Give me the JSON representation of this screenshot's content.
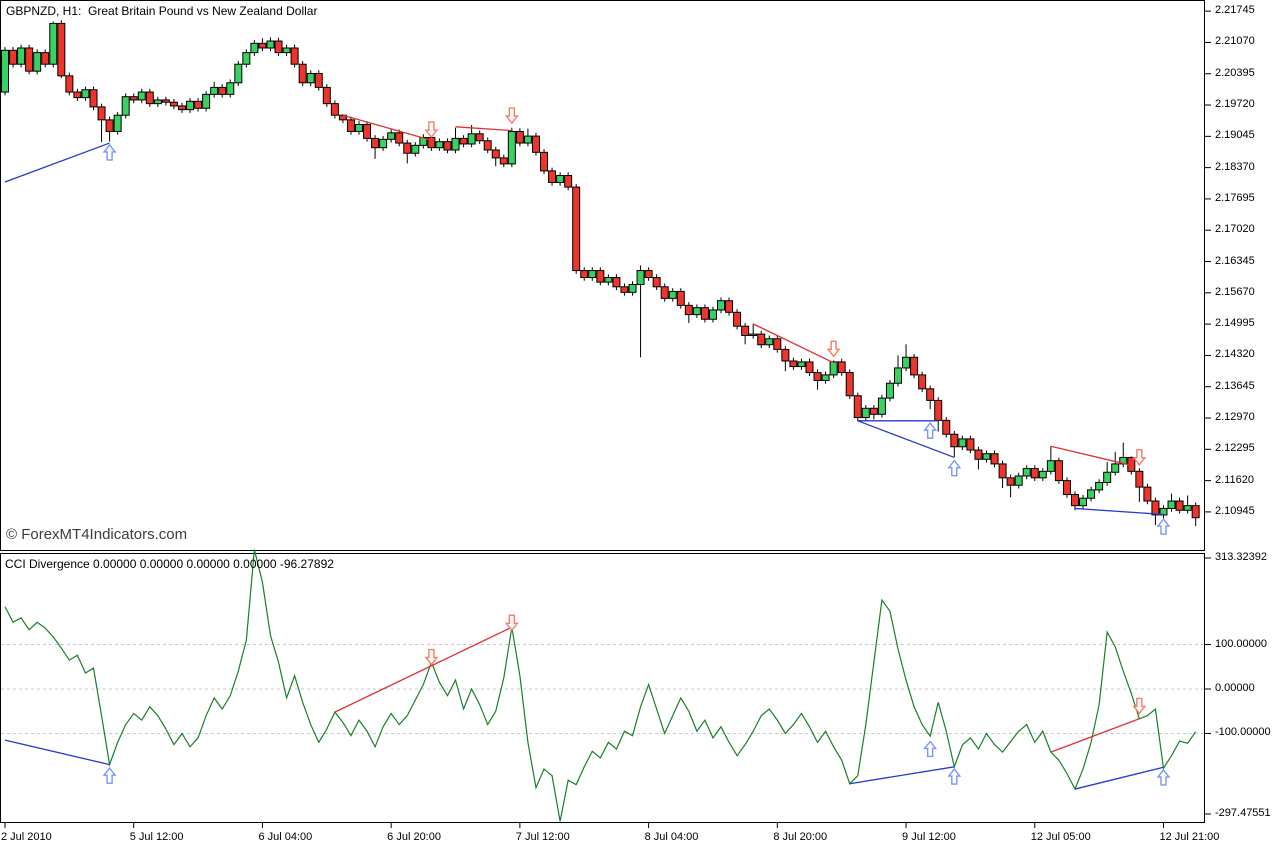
{
  "window": {
    "title": "GBPNZD, H1:  Great Britain Pound vs New Zealand Dollar",
    "watermark": "© ForexMT4Indicators.com"
  },
  "indicator": {
    "label": "CCI Divergence 0.00000 0.00000 0.00000 0.00000 -96.27892"
  },
  "colors": {
    "bull_candle": "#3ad163",
    "bear_candle": "#ee352b",
    "candle_outline": "#000000",
    "cci_line": "#1a7f2a",
    "blue_line": "#2638cf",
    "red_line": "#e03131",
    "blue_arrow": "#7a96f8",
    "red_arrow": "#fb7a66",
    "grid": "#c9c9c9",
    "axis_text": "#000000"
  },
  "chart_data": [
    {
      "type": "candlestick",
      "symbol": "GBPNZD",
      "timeframe": "H1",
      "title": "GBPNZD, H1:  Great Britain Pound vs New Zealand Dollar",
      "ylim": [
        2.1024,
        2.2199
      ],
      "grid": "off",
      "y_ticks": [
        2.21745,
        2.2107,
        2.20395,
        2.1972,
        2.19045,
        2.1837,
        2.17695,
        2.1702,
        2.16345,
        2.1567,
        2.14995,
        2.1432,
        2.13645,
        2.1297,
        2.12295,
        2.1162,
        2.10945
      ],
      "x_labels": [
        {
          "text": "2 Jul 2010",
          "bar": 0
        },
        {
          "text": "5 Jul 12:00",
          "bar": 16
        },
        {
          "text": "6 Jul 04:00",
          "bar": 32
        },
        {
          "text": "6 Jul 20:00",
          "bar": 48
        },
        {
          "text": "7 Jul 12:00",
          "bar": 64
        },
        {
          "text": "8 Jul 04:00",
          "bar": 80
        },
        {
          "text": "8 Jul 20:00",
          "bar": 96
        },
        {
          "text": "9 Jul 12:00",
          "bar": 112
        },
        {
          "text": "12 Jul 05:00",
          "bar": 128
        },
        {
          "text": "12 Jul 21:00",
          "bar": 144
        }
      ],
      "open0": 2.2,
      "default_wick": 0.0007,
      "closes": [
        2.209,
        2.206,
        2.2095,
        2.2045,
        2.2085,
        2.206,
        2.2148,
        2.2035,
        2.2,
        2.1988,
        2.2005,
        2.1968,
        2.194,
        2.1915,
        2.195,
        2.199,
        2.1983,
        2.2,
        2.1975,
        2.1983,
        2.1978,
        2.197,
        2.1962,
        2.198,
        2.1965,
        2.1995,
        2.201,
        2.1995,
        2.202,
        2.206,
        2.2085,
        2.2105,
        2.2095,
        2.211,
        2.2085,
        2.2095,
        2.206,
        2.202,
        2.204,
        2.201,
        2.1975,
        2.195,
        2.194,
        2.1915,
        2.193,
        2.19,
        2.188,
        2.1898,
        2.1912,
        2.189,
        2.1868,
        2.1885,
        2.1902,
        2.188,
        2.1893,
        2.1875,
        2.19,
        2.1888,
        2.191,
        2.1895,
        2.1875,
        2.1858,
        2.1845,
        2.1915,
        2.189,
        2.1905,
        2.187,
        2.183,
        2.1805,
        2.182,
        2.1795,
        2.1615,
        2.16,
        2.1615,
        2.159,
        2.16,
        2.158,
        2.1568,
        2.1585,
        2.1615,
        2.16,
        2.158,
        2.1555,
        2.157,
        2.154,
        2.152,
        2.1535,
        2.151,
        2.153,
        2.155,
        2.1525,
        2.1495,
        2.1475,
        2.1478,
        2.1455,
        2.1468,
        2.1445,
        2.142,
        2.1408,
        2.1418,
        2.1395,
        2.1378,
        2.139,
        2.1418,
        2.1395,
        2.1345,
        2.1298,
        2.1318,
        2.1305,
        2.134,
        2.1372,
        2.1405,
        2.1428,
        2.139,
        2.136,
        2.1335,
        2.1292,
        2.1262,
        2.1235,
        2.1252,
        2.1228,
        2.1208,
        2.122,
        2.1198,
        2.1168,
        2.1152,
        2.1172,
        2.1188,
        2.1168,
        2.1182,
        2.1205,
        2.1162,
        2.1132,
        2.1108,
        2.1124,
        2.1142,
        2.1158,
        2.118,
        2.1198,
        2.1212,
        2.1182,
        2.1148,
        2.1118,
        2.1088,
        2.1102,
        2.1118,
        2.1098,
        2.1108,
        2.1082
      ],
      "wick_overrides": {
        "6": {
          "h": 2.2152
        },
        "7": {
          "l": 2.203
        },
        "12": {
          "l": 2.1892
        },
        "13": {
          "l": 2.1893
        },
        "26": {
          "h": 2.2022
        },
        "31": {
          "h": 2.2112
        },
        "32": {
          "h": 2.2116
        },
        "33": {
          "h": 2.2118
        },
        "42": {
          "h": 2.1952
        },
        "46": {
          "l": 2.1856
        },
        "50": {
          "l": 2.1846
        },
        "53": {
          "h": 2.1896
        },
        "56": {
          "h": 2.1923
        },
        "58": {
          "h": 2.1929
        },
        "61": {
          "l": 2.184
        },
        "63": {
          "h": 2.1923
        },
        "65": {
          "h": 2.1921
        },
        "79": {
          "h": 2.1626,
          "l": 2.1428
        },
        "85": {
          "l": 2.1502
        },
        "92": {
          "l": 2.1456
        },
        "93": {
          "h": 2.15
        },
        "97": {
          "l": 2.1398
        },
        "101": {
          "l": 2.1358
        },
        "103": {
          "h": 2.1421
        },
        "106": {
          "l": 2.129
        },
        "108": {
          "l": 2.1294
        },
        "111": {
          "h": 2.1432
        },
        "112": {
          "h": 2.1456
        },
        "115": {
          "l": 2.1316
        },
        "116": {
          "l": 2.1268
        },
        "118": {
          "l": 2.1212
        },
        "121": {
          "l": 2.1186
        },
        "124": {
          "l": 2.1146
        },
        "125": {
          "l": 2.1126
        },
        "130": {
          "h": 2.1236
        },
        "133": {
          "l": 2.1098
        },
        "137": {
          "h": 2.1202
        },
        "138": {
          "h": 2.1224
        },
        "139": {
          "h": 2.1244
        },
        "140": {
          "h": 2.1214
        },
        "141": {
          "l": 2.1116
        },
        "143": {
          "l": 2.1066
        },
        "145": {
          "h": 2.1134
        },
        "147": {
          "h": 2.113
        },
        "148": {
          "l": 2.1064
        }
      },
      "objects": {
        "trendlines": [
          {
            "color": "blue",
            "from": [
              0,
              2.1806
            ],
            "to": [
              13,
              2.189
            ]
          },
          {
            "color": "blue",
            "from": [
              106,
              2.1291
            ],
            "to": [
              116,
              2.1291
            ]
          },
          {
            "color": "blue",
            "from": [
              106,
              2.1291
            ],
            "to": [
              118,
              2.1212
            ]
          },
          {
            "color": "blue",
            "from": [
              133,
              2.1102
            ],
            "to": [
              144,
              2.1089
            ]
          },
          {
            "color": "red",
            "from": [
              42,
              2.195
            ],
            "to": [
              53,
              2.1896
            ]
          },
          {
            "color": "red",
            "from": [
              56,
              2.1925
            ],
            "to": [
              63,
              2.1917
            ]
          },
          {
            "color": "red",
            "from": [
              93,
              2.15
            ],
            "to": [
              103,
              2.1416
            ]
          },
          {
            "color": "red",
            "from": [
              130,
              2.1236
            ],
            "to": [
              140,
              2.1195
            ]
          }
        ],
        "arrows": [
          {
            "dir": "up",
            "bar": 13,
            "price": 2.1886
          },
          {
            "dir": "up",
            "bar": 115,
            "price": 2.1286
          },
          {
            "dir": "up",
            "bar": 118,
            "price": 2.1205
          },
          {
            "dir": "up",
            "bar": 144,
            "price": 2.1079
          },
          {
            "dir": "down",
            "bar": 53,
            "price": 2.1903
          },
          {
            "dir": "down",
            "bar": 63,
            "price": 2.1933
          },
          {
            "dir": "down",
            "bar": 103,
            "price": 2.143
          },
          {
            "dir": "down",
            "bar": 141,
            "price": 2.1196
          }
        ]
      }
    },
    {
      "type": "line",
      "name": "CCI Divergence",
      "current_value": -96.27892,
      "ylim": [
        -297.47551,
        313.32392
      ],
      "grid_levels": [
        100,
        0,
        -100
      ],
      "y_ticks": [
        {
          "label": "313.32392",
          "value": 313.32392
        },
        {
          "label": "100.00000",
          "value": 100.0
        },
        {
          "label": "0.00000",
          "value": 0.0
        },
        {
          "label": "-100.00000",
          "value": -100.0
        },
        {
          "label": "-297.47551",
          "value": -297.47551
        }
      ],
      "values": [
        185,
        150,
        160,
        133,
        150,
        137,
        117,
        92,
        65,
        76,
        36,
        47,
        -60,
        -170,
        -120,
        -80,
        -55,
        -70,
        -40,
        -60,
        -90,
        -125,
        -100,
        -130,
        -110,
        -60,
        -20,
        -45,
        -15,
        40,
        110,
        313.32,
        240,
        120,
        60,
        -20,
        30,
        -30,
        -80,
        -120,
        -90,
        -52,
        -75,
        -105,
        -70,
        -95,
        -130,
        -85,
        -55,
        -80,
        -60,
        -25,
        10,
        60,
        15,
        -15,
        20,
        -45,
        0,
        -35,
        -80,
        -50,
        25,
        139,
        30,
        -120,
        -222,
        -180,
        -195,
        -297.48,
        -205,
        -215,
        -175,
        -140,
        -155,
        -120,
        -135,
        -95,
        -105,
        -40,
        10,
        -45,
        -100,
        -60,
        -20,
        -50,
        -95,
        -70,
        -110,
        -85,
        -120,
        -150,
        -125,
        -95,
        -60,
        -45,
        -70,
        -100,
        -80,
        -55,
        -85,
        -120,
        -95,
        -130,
        -160,
        -213,
        -195,
        -80,
        60,
        200,
        175,
        90,
        20,
        -40,
        -80,
        -106,
        -30,
        -95,
        -175,
        -126,
        -110,
        -135,
        -100,
        -125,
        -142,
        -118,
        -95,
        -80,
        -120,
        -95,
        -142,
        -160,
        -190,
        -225,
        -180,
        -120,
        -35,
        128,
        95,
        40,
        -10,
        -67,
        -60,
        -45,
        -178,
        -150,
        -117,
        -122,
        -96.28
      ],
      "objects": {
        "trendlines": [
          {
            "color": "blue",
            "from": [
              0,
              -115
            ],
            "to": [
              13,
              -170
            ]
          },
          {
            "color": "blue",
            "from": [
              105,
              -213
            ],
            "to": [
              118,
              -175
            ]
          },
          {
            "color": "blue",
            "from": [
              133,
              -225
            ],
            "to": [
              144,
              -176
            ]
          },
          {
            "color": "red",
            "from": [
              41,
              -52
            ],
            "to": [
              63,
              139
            ]
          },
          {
            "color": "red",
            "from": [
              130,
              -142
            ],
            "to": [
              141,
              -67
            ]
          }
        ],
        "arrows": [
          {
            "dir": "up",
            "bar": 13,
            "value": -178
          },
          {
            "dir": "up",
            "bar": 115,
            "value": -118
          },
          {
            "dir": "up",
            "bar": 118,
            "value": -180
          },
          {
            "dir": "up",
            "bar": 144,
            "value": -182
          },
          {
            "dir": "down",
            "bar": 53,
            "value": 55
          },
          {
            "dir": "down",
            "bar": 63,
            "value": 132
          },
          {
            "dir": "down",
            "bar": 141,
            "value": -55
          }
        ]
      }
    }
  ]
}
